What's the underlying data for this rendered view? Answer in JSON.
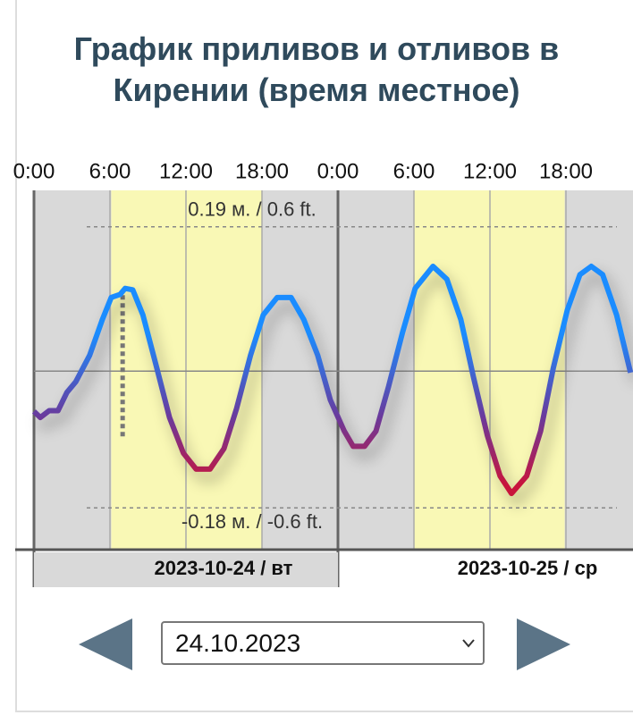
{
  "header": {
    "title": "График приливов и отливов в Кирении (время местное)"
  },
  "chart_data": {
    "type": "line",
    "x": [
      0,
      0.5,
      1.2,
      1.9,
      2.6,
      3.3,
      4.4,
      5.4,
      6.1,
      6.8,
      7.2,
      7.8,
      8.6,
      9.7,
      10.7,
      11.8,
      12.8,
      13.9,
      15.0,
      16.0,
      17.1,
      18.1,
      19.2,
      20.3,
      21.3,
      22.4,
      23.4,
      24.5,
      25.2,
      26.1,
      27.0,
      28.0,
      29.1,
      30.1,
      31.5,
      32.6,
      33.7,
      34.7,
      35.8,
      36.8,
      37.7,
      38.9,
      40.0,
      41.0,
      42.1,
      43.1,
      44.0,
      44.9,
      46.0,
      47.1
    ],
    "series": [
      {
        "colors": [
          "#1a8cff",
          "#6a3a9c",
          "#c8143c"
        ],
        "values": [
          -0.053,
          -0.061,
          -0.052,
          -0.052,
          -0.028,
          -0.014,
          0.021,
          0.068,
          0.097,
          0.101,
          0.109,
          0.107,
          0.074,
          0.004,
          -0.061,
          -0.108,
          -0.129,
          -0.129,
          -0.102,
          -0.049,
          0.021,
          0.074,
          0.097,
          0.097,
          0.068,
          0.021,
          -0.038,
          -0.079,
          -0.099,
          -0.099,
          -0.079,
          -0.02,
          0.051,
          0.109,
          0.138,
          0.121,
          0.068,
          -0.008,
          -0.085,
          -0.138,
          -0.161,
          -0.138,
          -0.079,
          0.004,
          0.08,
          0.127,
          0.138,
          0.127,
          0.074,
          -0.002
        ]
      }
    ],
    "xlim": [
      0,
      48
    ],
    "ylim": [
      -0.235,
      0.238
    ],
    "xticks": [
      {
        "value": 0,
        "label": "0:00"
      },
      {
        "value": 6,
        "label": "6:00"
      },
      {
        "value": 12,
        "label": "12:00"
      },
      {
        "value": 18,
        "label": "18:00"
      },
      {
        "value": 24,
        "label": "0:00"
      },
      {
        "value": 30,
        "label": "6:00"
      },
      {
        "value": 36,
        "label": "12:00"
      },
      {
        "value": 42,
        "label": "18:00"
      }
    ],
    "daylight": [
      [
        6.1,
        18.0
      ],
      [
        30.0,
        41.9
      ]
    ],
    "ref_lines": [
      {
        "value": 0.19,
        "label": "0.19 м. / 0.6 ft."
      },
      {
        "value": -0.18,
        "label": "-0.18 м. / -0.6 ft."
      }
    ],
    "now_marker": {
      "x": 7.0,
      "from": 0.1,
      "to": -0.087
    },
    "days": [
      "2023-10-24 / вт",
      "2023-10-25 / ср"
    ]
  },
  "controls": {
    "date_select": "24.10.2023"
  }
}
